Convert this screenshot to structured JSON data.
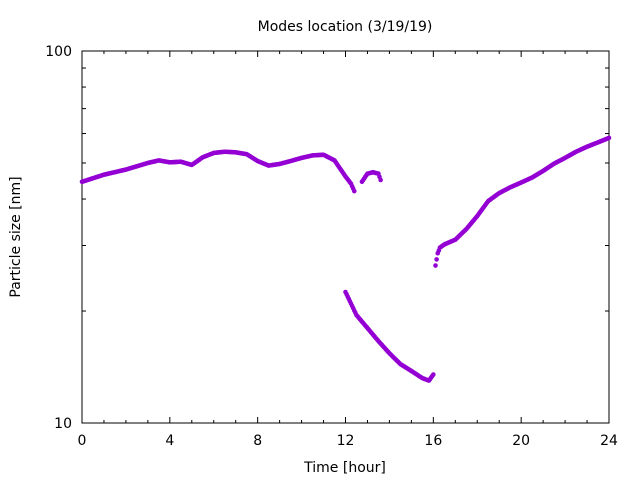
{
  "chart_data": {
    "type": "scatter",
    "title": "Modes location (3/19/19)",
    "xlabel": "Time [hour]",
    "ylabel": "Particle size [nm]",
    "xlim": [
      0,
      24
    ],
    "ylim": [
      10,
      100
    ],
    "y_scale": "log",
    "x_ticks": [
      0,
      4,
      8,
      12,
      16,
      20,
      24
    ],
    "y_tick_labels": [
      10,
      100
    ],
    "grid": false,
    "legend": "none",
    "marker_color": "#9400d3",
    "series": [
      {
        "segments": [
          {
            "x": [
              0,
              1,
              2,
              3,
              3.5,
              4,
              4.5,
              5,
              5.5,
              6,
              6.5,
              7,
              7.5,
              8,
              8.5,
              9,
              9.5,
              10,
              10.5,
              11,
              11.5,
              12,
              12.25,
              12.4
            ],
            "y": [
              44.5,
              46.5,
              48,
              50,
              50.8,
              50.2,
              50.4,
              49.4,
              51.8,
              53.2,
              53.6,
              53.4,
              52.8,
              50.6,
              49.2,
              49.7,
              50.6,
              51.6,
              52.4,
              52.6,
              50.8,
              46,
              44,
              42
            ]
          },
          {
            "x": [
              12.75,
              13,
              13.25,
              13.5,
              13.6
            ],
            "y": [
              44.5,
              46.8,
              47.2,
              46.8,
              45
            ]
          },
          {
            "x": [
              12,
              12.5,
              13,
              13.5,
              14,
              14.5,
              15,
              15.5,
              15.8,
              16
            ],
            "y": [
              22.5,
              19.5,
              18,
              16.6,
              15.4,
              14.4,
              13.8,
              13.2,
              13,
              13.5
            ]
          },
          {
            "x": [
              16.1,
              16.2,
              16.3,
              16.5,
              17,
              17.5,
              18,
              18.5,
              19,
              19.5,
              20,
              20.5,
              21,
              21.5,
              22,
              22.5,
              23,
              23.5,
              24
            ],
            "y": [
              26.5,
              28.6,
              29.6,
              30.2,
              31.1,
              33.2,
              36,
              39.5,
              41.5,
              43,
              44.3,
              45.7,
              47.6,
              49.8,
              51.6,
              53.6,
              55.3,
              56.8,
              58.4
            ]
          }
        ]
      }
    ]
  }
}
